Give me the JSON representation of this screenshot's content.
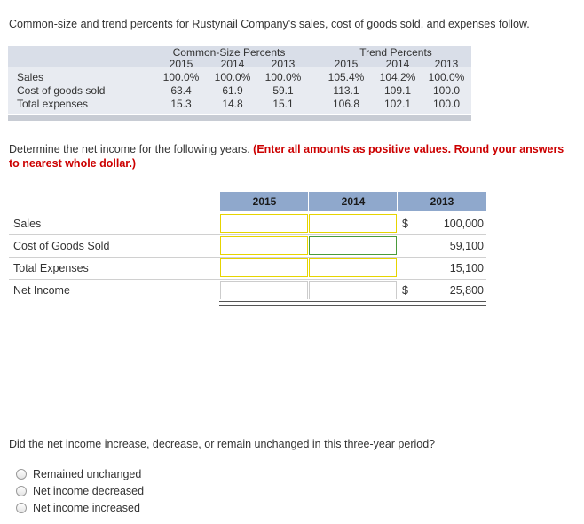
{
  "intro": "Common-size and trend percents for Rustynail Company's sales, cost of goods sold, and expenses follow.",
  "given": {
    "common_size_header": "Common-Size Percents",
    "trend_header": "Trend Percents",
    "years": [
      "2015",
      "2014",
      "2013"
    ],
    "rows": [
      {
        "label": "Sales",
        "common": [
          "100.0%",
          "100.0%",
          "100.0%"
        ],
        "trend": [
          "105.4%",
          "104.2%",
          "100.0%"
        ]
      },
      {
        "label": "Cost of goods sold",
        "common": [
          "63.4",
          "61.9",
          "59.1"
        ],
        "trend": [
          "113.1",
          "109.1",
          "100.0"
        ]
      },
      {
        "label": "Total expenses",
        "common": [
          "15.3",
          "14.8",
          "15.1"
        ],
        "trend": [
          "106.8",
          "102.1",
          "100.0"
        ]
      }
    ]
  },
  "instructions": {
    "text": "Determine the net income for the following years.",
    "emphasis": "(Enter all amounts as positive values. Round your answers to nearest whole dollar.)"
  },
  "answer_table": {
    "headers": [
      "2015",
      "2014",
      "2013"
    ],
    "rows": [
      {
        "label": "Sales",
        "input_2015": "",
        "input_2014": "",
        "dollar": "$",
        "value_2013": "100,000"
      },
      {
        "label": "Cost of Goods Sold",
        "input_2015": "",
        "input_2014": "",
        "dollar": "",
        "value_2013": "59,100"
      },
      {
        "label": "Total Expenses",
        "input_2015": "",
        "input_2014": "",
        "dollar": "",
        "value_2013": "15,100"
      },
      {
        "label": "Net Income",
        "input_2015": "",
        "input_2014": "",
        "dollar": "$",
        "value_2013": "25,800"
      }
    ]
  },
  "question": "Did the net income increase, decrease, or remain unchanged in this three-year period?",
  "options": [
    "Remained unchanged",
    "Net income decreased",
    "Net income increased"
  ],
  "colors": {
    "header_blue": "#8fa8cc",
    "input_border": "#e6d400",
    "focused_border": "#4a9a3a",
    "emphasis_red": "#cc0000"
  }
}
